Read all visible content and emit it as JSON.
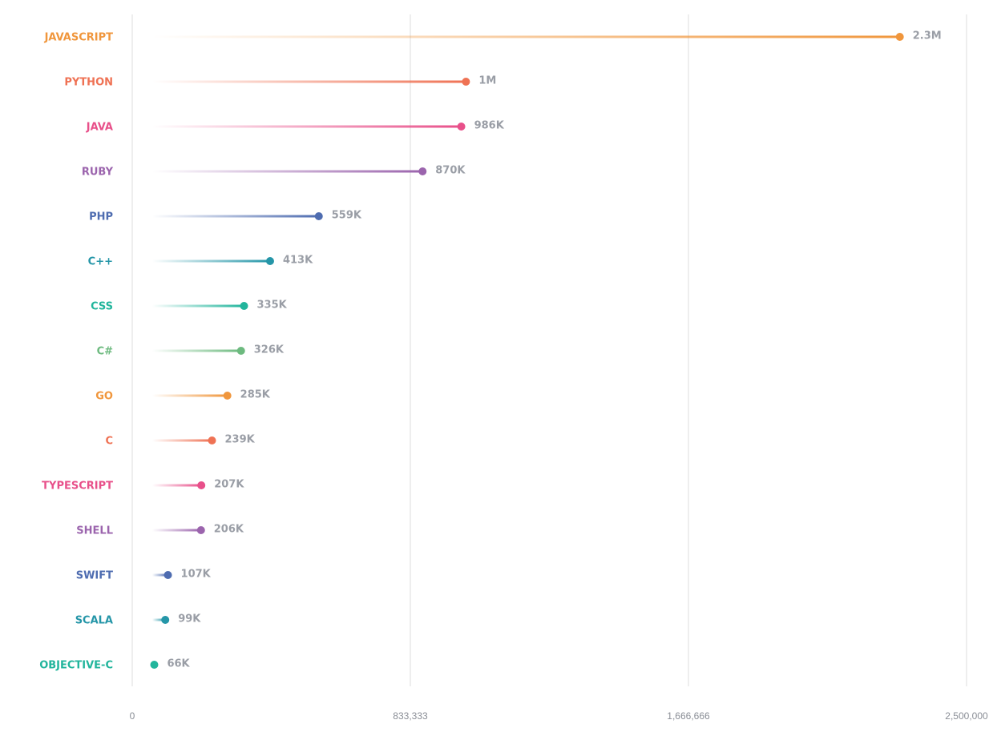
{
  "chart_data": {
    "type": "lollipop",
    "categories": [
      "JAVASCRIPT",
      "PYTHON",
      "JAVA",
      "RUBY",
      "PHP",
      "C++",
      "CSS",
      "C#",
      "GO",
      "C",
      "TYPESCRIPT",
      "SHELL",
      "SWIFT",
      "SCALA",
      "OBJECTIVE-C"
    ],
    "values": [
      2300000,
      1000000,
      986000,
      870000,
      559000,
      413000,
      335000,
      326000,
      285000,
      239000,
      207000,
      206000,
      107000,
      99000,
      66000
    ],
    "value_labels": [
      "2.3M",
      "1M",
      "986K",
      "870K",
      "559K",
      "413K",
      "335K",
      "326K",
      "285K",
      "239K",
      "207K",
      "206K",
      "107K",
      "99K",
      "66K"
    ],
    "colors": [
      "#f0963c",
      "#ef7254",
      "#e8508a",
      "#9b64ad",
      "#4e6cb0",
      "#2596a8",
      "#22b59c",
      "#6dba7f",
      "#f0963c",
      "#ef7254",
      "#e8508a",
      "#9b64ad",
      "#4e6cb0",
      "#2596a8",
      "#22b59c"
    ],
    "xlim": [
      0,
      2500000
    ],
    "xticks": [
      0,
      {
        "value": 833333,
        "label": "833,333"
      },
      {
        "value": 1666666,
        "label": "1,666,666"
      },
      {
        "value": 2500000,
        "label": "2,500,000"
      }
    ],
    "grid": true
  }
}
